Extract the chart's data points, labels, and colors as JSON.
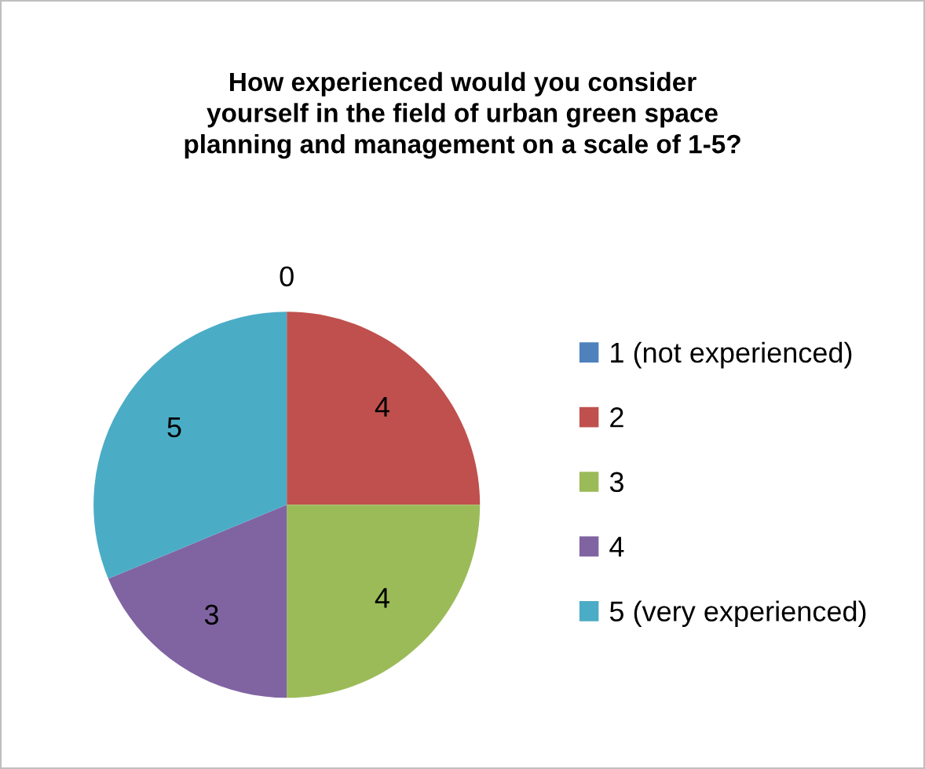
{
  "chart_data": {
    "type": "pie",
    "title": "How experienced would you consider\nyourself in the field of urban green space\nplanning and management on a scale of 1-5?",
    "categories": [
      "1 (not experienced)",
      "2",
      "3",
      "4",
      "5 (very experienced)"
    ],
    "values": [
      0,
      4,
      4,
      3,
      5
    ],
    "colors": [
      "#4f81bd",
      "#c0504d",
      "#9bbb59",
      "#8064a2",
      "#4bacc6"
    ],
    "value_labels": [
      "0",
      "4",
      "4",
      "3",
      "5"
    ],
    "legend": "right"
  }
}
